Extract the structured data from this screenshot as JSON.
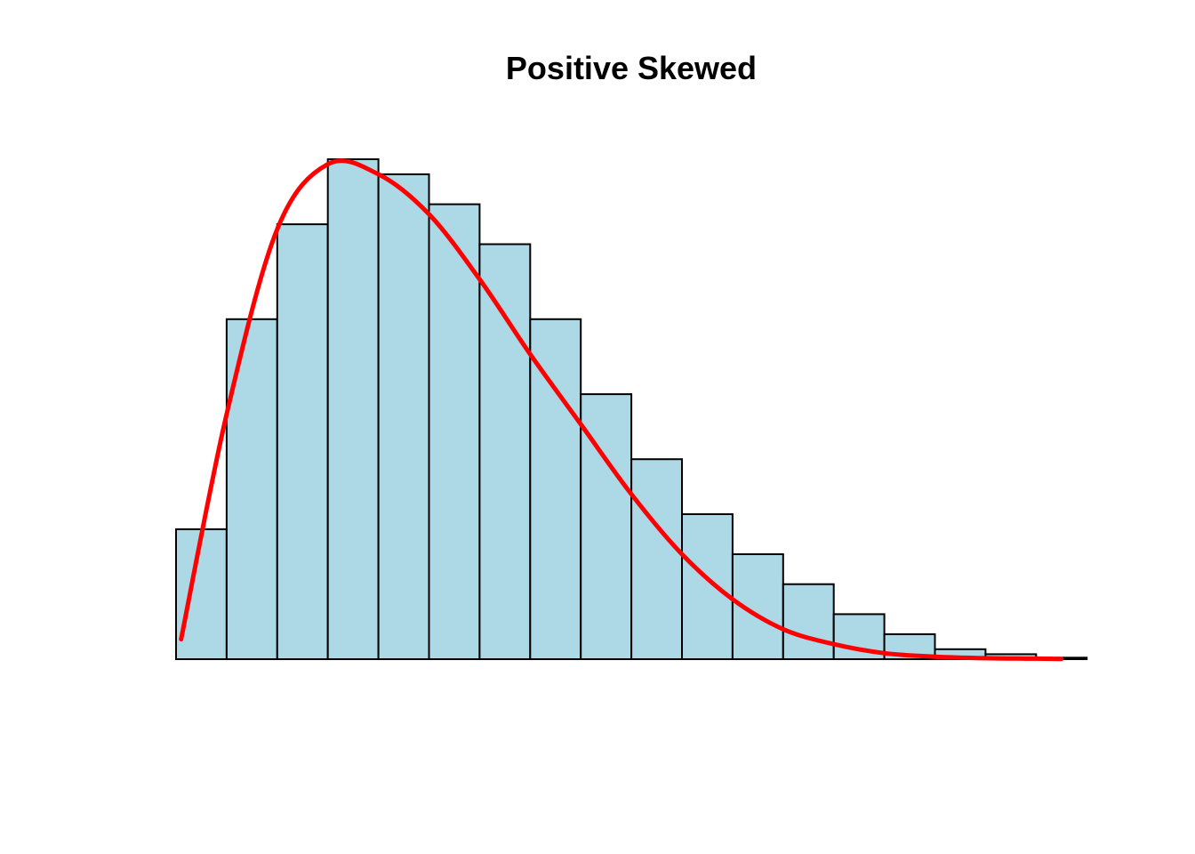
{
  "chart_data": {
    "type": "bar",
    "title": "Positive Skewed",
    "xlabel": "",
    "ylabel": "",
    "axes_visible": false,
    "grid": false,
    "legend": "none",
    "bins": 18,
    "values": [
      26,
      68,
      87,
      100,
      97,
      91,
      83,
      68,
      53,
      40,
      29,
      21,
      15,
      9,
      5,
      2,
      1,
      0.3
    ],
    "ylim": [
      0,
      100
    ],
    "density_curve": {
      "name": "",
      "x": [
        0.1,
        1,
        2,
        3,
        4,
        5,
        6,
        7,
        8,
        9,
        10,
        11,
        12,
        13,
        14,
        15,
        16,
        17,
        17.5
      ],
      "y": [
        4,
        49,
        86,
        99,
        97,
        89,
        76,
        61,
        47,
        33,
        21,
        12,
        6,
        3,
        1.2,
        0.5,
        0.2,
        0.1,
        0.05
      ]
    },
    "colors": {
      "bar_fill": "#add8e6",
      "bar_stroke": "#000000",
      "curve": "#ff0000"
    }
  }
}
